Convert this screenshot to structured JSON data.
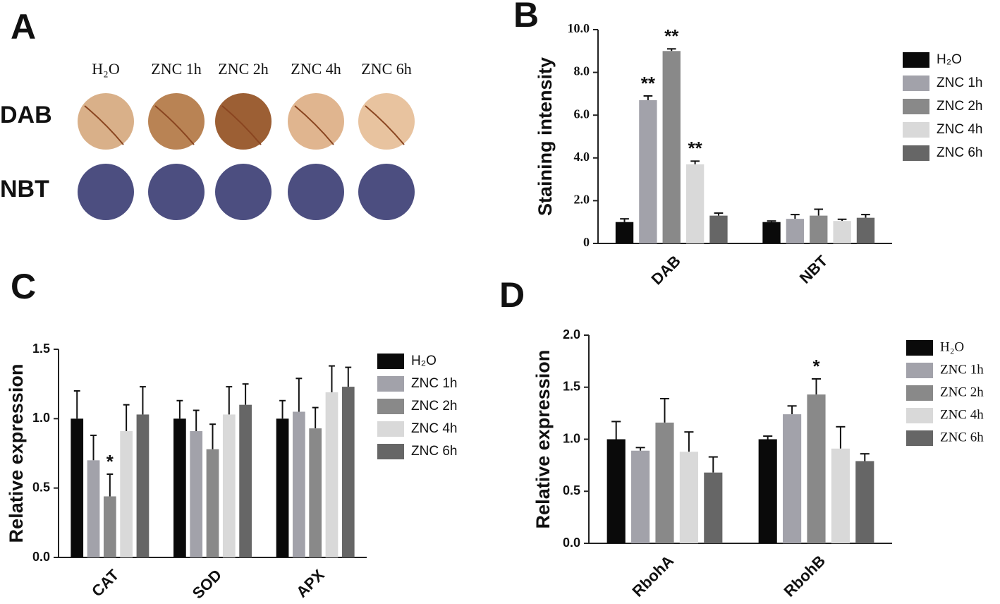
{
  "panel_a": {
    "panel_label": "A",
    "columns": [
      "H₂O",
      "ZNC 1h",
      "ZNC 2h",
      "ZNC 4h",
      "ZNC 6h"
    ],
    "rows": [
      "DAB",
      "NBT"
    ]
  },
  "chart_data": [
    {
      "type": "bar",
      "panel_label": "B",
      "ylabel": "Staining intensity",
      "categories": [
        "DAB",
        "NBT"
      ],
      "ylim": [
        0,
        10
      ],
      "yticks": [
        0,
        {
          "value": 2,
          "label": "2.0"
        },
        {
          "value": 4,
          "label": "4.0"
        },
        {
          "value": 6,
          "label": "6.0"
        },
        {
          "value": 8,
          "label": "8.0"
        },
        {
          "value": 10,
          "label": "10.0"
        }
      ],
      "series": [
        {
          "name": "H₂O",
          "color": "#0a0a0a",
          "values": [
            1.0,
            1.0
          ],
          "errors": [
            0.15,
            0.05
          ],
          "significance": [
            null,
            null
          ]
        },
        {
          "name": "ZNC 1h",
          "color": "#a2a2aa",
          "values": [
            6.7,
            1.15
          ],
          "errors": [
            0.2,
            0.2
          ],
          "significance": [
            "**",
            null
          ]
        },
        {
          "name": "ZNC 2h",
          "color": "#898989",
          "values": [
            9.0,
            1.3
          ],
          "errors": [
            0.1,
            0.3
          ],
          "significance": [
            "**",
            null
          ]
        },
        {
          "name": "ZNC 4h",
          "color": "#d9d9d9",
          "values": [
            3.7,
            1.05
          ],
          "errors": [
            0.15,
            0.08
          ],
          "significance": [
            "**",
            null
          ]
        },
        {
          "name": "ZNC 6h",
          "color": "#666666",
          "values": [
            1.3,
            1.2
          ],
          "errors": [
            0.12,
            0.15
          ],
          "significance": [
            null,
            null
          ]
        }
      ]
    },
    {
      "type": "bar",
      "panel_label": "C",
      "ylabel": "Relative expression",
      "categories": [
        "CAT",
        "SOD",
        "APX"
      ],
      "ylim": [
        0,
        1.5
      ],
      "yticks": [
        {
          "value": 0,
          "label": "0.0"
        },
        0.5,
        {
          "value": 1,
          "label": "1.0"
        },
        1.5
      ],
      "series": [
        {
          "name": "H₂O",
          "color": "#0a0a0a",
          "values": [
            1.0,
            1.0,
            1.0
          ],
          "errors": [
            0.2,
            0.13,
            0.13
          ],
          "significance": [
            null,
            null,
            null
          ]
        },
        {
          "name": "ZNC 1h",
          "color": "#a2a2aa",
          "values": [
            0.7,
            0.91,
            1.05
          ],
          "errors": [
            0.18,
            0.15,
            0.24
          ],
          "significance": [
            null,
            null,
            null
          ]
        },
        {
          "name": "ZNC 2h",
          "color": "#898989",
          "values": [
            0.44,
            0.78,
            0.93
          ],
          "errors": [
            0.16,
            0.18,
            0.15
          ],
          "significance": [
            "*",
            null,
            null
          ]
        },
        {
          "name": "ZNC 4h",
          "color": "#d9d9d9",
          "values": [
            0.91,
            1.03,
            1.19
          ],
          "errors": [
            0.19,
            0.2,
            0.19
          ],
          "significance": [
            null,
            null,
            null
          ]
        },
        {
          "name": "ZNC 6h",
          "color": "#666666",
          "values": [
            1.03,
            1.1,
            1.23
          ],
          "errors": [
            0.2,
            0.15,
            0.14
          ],
          "significance": [
            null,
            null,
            null
          ]
        }
      ]
    },
    {
      "type": "bar",
      "panel_label": "D",
      "ylabel": "Relative expression",
      "categories": [
        "RbohA",
        "RbohB"
      ],
      "ylim": [
        0,
        2
      ],
      "yticks": [
        {
          "value": 0,
          "label": "0.0"
        },
        0.5,
        {
          "value": 1,
          "label": "1.0"
        },
        1.5,
        {
          "value": 2,
          "label": "2.0"
        }
      ],
      "series": [
        {
          "name": "H₂O",
          "color": "#0a0a0a",
          "values": [
            1.0,
            1.0
          ],
          "errors": [
            0.17,
            0.03
          ],
          "significance": [
            null,
            null
          ]
        },
        {
          "name": "ZNC 1h",
          "color": "#a2a2aa",
          "values": [
            0.89,
            1.24
          ],
          "errors": [
            0.03,
            0.08
          ],
          "significance": [
            null,
            null
          ]
        },
        {
          "name": "ZNC 2h",
          "color": "#898989",
          "values": [
            1.16,
            1.43
          ],
          "errors": [
            0.23,
            0.15
          ],
          "significance": [
            null,
            "*"
          ]
        },
        {
          "name": "ZNC 4h",
          "color": "#d9d9d9",
          "values": [
            0.88,
            0.91
          ],
          "errors": [
            0.19,
            0.21
          ],
          "significance": [
            null,
            null
          ]
        },
        {
          "name": "ZNC 6h",
          "color": "#666666",
          "values": [
            0.68,
            0.79
          ],
          "errors": [
            0.15,
            0.07
          ],
          "significance": [
            null,
            null
          ]
        }
      ]
    }
  ]
}
